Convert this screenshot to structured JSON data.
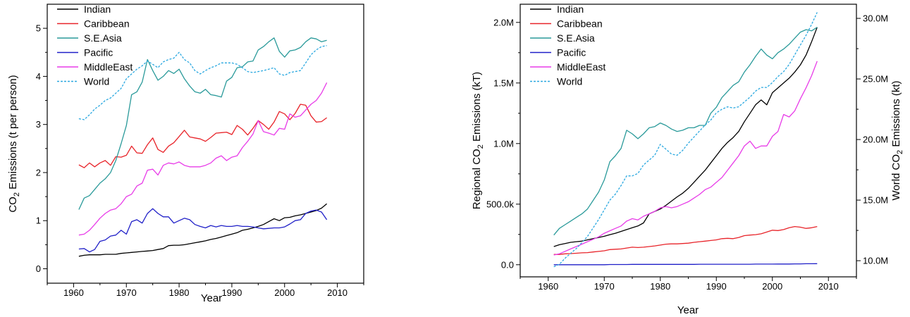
{
  "chart_data": [
    {
      "type": "line",
      "xlabel": "Year",
      "ylabel": [
        "CO",
        "2",
        " Emissions (t per person)"
      ],
      "xlim": [
        1955,
        2015
      ],
      "ylim": [
        -0.3,
        5.5
      ],
      "xticks": [
        1960,
        1970,
        1980,
        1990,
        2000,
        2010
      ],
      "yticks": [
        0,
        1,
        2,
        3,
        4,
        5
      ],
      "ytick_labels": [
        "0",
        "1",
        "2",
        "3",
        "4",
        "5"
      ],
      "legend": "top-left",
      "x": [
        1961,
        1962,
        1963,
        1964,
        1965,
        1966,
        1967,
        1968,
        1969,
        1970,
        1971,
        1972,
        1973,
        1974,
        1975,
        1976,
        1977,
        1978,
        1979,
        1980,
        1981,
        1982,
        1983,
        1984,
        1985,
        1986,
        1987,
        1988,
        1989,
        1990,
        1991,
        1992,
        1993,
        1994,
        1995,
        1996,
        1997,
        1998,
        1999,
        2000,
        2001,
        2002,
        2003,
        2004,
        2005,
        2006,
        2007,
        2008
      ],
      "series": [
        {
          "name": "Indian",
          "color": "#000000",
          "dashed": false,
          "values": [
            0.26,
            0.28,
            0.29,
            0.29,
            0.29,
            0.3,
            0.3,
            0.3,
            0.32,
            0.33,
            0.34,
            0.35,
            0.36,
            0.37,
            0.38,
            0.4,
            0.42,
            0.48,
            0.49,
            0.49,
            0.5,
            0.52,
            0.54,
            0.56,
            0.58,
            0.61,
            0.63,
            0.66,
            0.69,
            0.72,
            0.75,
            0.8,
            0.82,
            0.85,
            0.88,
            0.92,
            0.98,
            1.04,
            1.0,
            1.06,
            1.07,
            1.1,
            1.12,
            1.15,
            1.18,
            1.21,
            1.26,
            1.35
          ]
        },
        {
          "name": "Caribbean",
          "color": "#e8242a",
          "dashed": false,
          "values": [
            2.16,
            2.1,
            2.2,
            2.12,
            2.2,
            2.25,
            2.15,
            2.33,
            2.32,
            2.36,
            2.55,
            2.41,
            2.4,
            2.58,
            2.72,
            2.48,
            2.42,
            2.55,
            2.62,
            2.75,
            2.88,
            2.74,
            2.72,
            2.7,
            2.65,
            2.73,
            2.82,
            2.83,
            2.84,
            2.79,
            2.98,
            2.9,
            2.78,
            2.92,
            3.08,
            3.0,
            2.9,
            3.05,
            3.27,
            3.22,
            3.1,
            3.23,
            3.42,
            3.4,
            3.18,
            3.05,
            3.06,
            3.14
          ]
        },
        {
          "name": "S.E.Asia",
          "color": "#2a9a9a",
          "dashed": false,
          "values": [
            1.23,
            1.47,
            1.52,
            1.65,
            1.78,
            1.87,
            2.0,
            2.25,
            2.6,
            2.98,
            3.62,
            3.68,
            3.88,
            4.35,
            4.12,
            3.92,
            4.0,
            4.12,
            4.06,
            4.15,
            3.95,
            3.8,
            3.68,
            3.65,
            3.73,
            3.62,
            3.6,
            3.57,
            3.9,
            3.98,
            4.18,
            4.2,
            4.3,
            4.32,
            4.55,
            4.62,
            4.72,
            4.8,
            4.52,
            4.4,
            4.53,
            4.55,
            4.6,
            4.72,
            4.8,
            4.78,
            4.72,
            4.75
          ]
        },
        {
          "name": "Pacific",
          "color": "#2020c8",
          "dashed": false,
          "values": [
            0.41,
            0.42,
            0.35,
            0.4,
            0.57,
            0.6,
            0.68,
            0.7,
            0.8,
            0.72,
            0.98,
            1.02,
            0.95,
            1.15,
            1.25,
            1.15,
            1.08,
            1.08,
            0.95,
            1.0,
            1.05,
            1.02,
            0.92,
            0.88,
            0.85,
            0.9,
            0.87,
            0.9,
            0.88,
            0.88,
            0.9,
            0.88,
            0.88,
            0.87,
            0.85,
            0.83,
            0.84,
            0.85,
            0.85,
            0.87,
            0.93,
            1.0,
            1.02,
            1.15,
            1.2,
            1.22,
            1.18,
            1.02
          ]
        },
        {
          "name": "MiddleEast",
          "color": "#e83ce8",
          "dashed": false,
          "values": [
            0.7,
            0.72,
            0.8,
            0.92,
            1.05,
            1.15,
            1.22,
            1.25,
            1.35,
            1.5,
            1.55,
            1.72,
            1.78,
            2.05,
            2.07,
            1.95,
            2.15,
            2.2,
            2.18,
            2.22,
            2.15,
            2.12,
            2.12,
            2.12,
            2.15,
            2.2,
            2.3,
            2.35,
            2.25,
            2.32,
            2.35,
            2.52,
            2.65,
            2.8,
            3.08,
            2.85,
            2.82,
            2.78,
            2.92,
            2.9,
            3.22,
            3.15,
            3.18,
            3.3,
            3.42,
            3.5,
            3.65,
            3.87
          ]
        },
        {
          "name": "World",
          "color": "#2aa8e0",
          "dashed": true,
          "values": [
            3.12,
            3.1,
            3.2,
            3.32,
            3.4,
            3.5,
            3.55,
            3.65,
            3.75,
            3.95,
            4.05,
            4.15,
            4.22,
            4.32,
            4.25,
            4.18,
            4.3,
            4.35,
            4.38,
            4.5,
            4.35,
            4.28,
            4.12,
            4.05,
            4.12,
            4.18,
            4.22,
            4.28,
            4.28,
            4.28,
            4.25,
            4.18,
            4.1,
            4.08,
            4.1,
            4.12,
            4.15,
            4.18,
            4.05,
            4.02,
            4.08,
            4.1,
            4.12,
            4.28,
            4.45,
            4.55,
            4.62,
            4.64
          ]
        }
      ]
    },
    {
      "type": "line",
      "xlabel": "Year",
      "ylabel": [
        "Regional CO",
        "2",
        " Emissions (kT)"
      ],
      "y2label": [
        "World CO",
        "2",
        " Emissions (kt)"
      ],
      "xlim": [
        1955,
        2015
      ],
      "ylim": [
        -100000,
        2150000
      ],
      "y2lim": [
        8666667,
        31166667
      ],
      "xticks": [
        1960,
        1970,
        1980,
        1990,
        2000,
        2010
      ],
      "yticks": [
        0,
        500000,
        1000000,
        1500000,
        2000000
      ],
      "ytick_labels": [
        "0.0",
        "500.0k",
        "1.0M",
        "1.5M",
        "2.0M"
      ],
      "y2ticks": [
        10000000,
        15000000,
        20000000,
        25000000,
        30000000
      ],
      "y2tick_labels": [
        "10.0M",
        "15.0M",
        "20.0M",
        "25.0M",
        "30.0M"
      ],
      "legend": "top-left",
      "x": [
        1961,
        1962,
        1963,
        1964,
        1965,
        1966,
        1967,
        1968,
        1969,
        1970,
        1971,
        1972,
        1973,
        1974,
        1975,
        1976,
        1977,
        1978,
        1979,
        1980,
        1981,
        1982,
        1983,
        1984,
        1985,
        1986,
        1987,
        1988,
        1989,
        1990,
        1991,
        1992,
        1993,
        1994,
        1995,
        1996,
        1997,
        1998,
        1999,
        2000,
        2001,
        2002,
        2003,
        2004,
        2005,
        2006,
        2007,
        2008
      ],
      "series": [
        {
          "name": "Indian",
          "color": "#000000",
          "dashed": false,
          "axis": "left",
          "values": [
            150000,
            165000,
            175000,
            185000,
            190000,
            195000,
            205000,
            215000,
            225000,
            235000,
            248000,
            260000,
            275000,
            290000,
            305000,
            320000,
            345000,
            420000,
            440000,
            460000,
            490000,
            525000,
            560000,
            590000,
            630000,
            680000,
            730000,
            780000,
            840000,
            900000,
            960000,
            1010000,
            1050000,
            1100000,
            1180000,
            1250000,
            1320000,
            1360000,
            1320000,
            1420000,
            1460000,
            1500000,
            1540000,
            1590000,
            1650000,
            1730000,
            1840000,
            1960000
          ]
        },
        {
          "name": "Caribbean",
          "color": "#e8242a",
          "dashed": false,
          "axis": "left",
          "values": [
            85000,
            85000,
            90000,
            92000,
            95000,
            98000,
            100000,
            105000,
            110000,
            115000,
            125000,
            128000,
            130000,
            138000,
            145000,
            142000,
            145000,
            150000,
            155000,
            162000,
            170000,
            172000,
            172000,
            175000,
            178000,
            185000,
            190000,
            195000,
            200000,
            205000,
            215000,
            218000,
            215000,
            225000,
            240000,
            245000,
            248000,
            255000,
            270000,
            285000,
            282000,
            290000,
            305000,
            315000,
            310000,
            300000,
            305000,
            315000
          ]
        },
        {
          "name": "S.E.Asia",
          "color": "#2a9a9a",
          "dashed": false,
          "axis": "left",
          "values": [
            245000,
            300000,
            330000,
            360000,
            390000,
            420000,
            460000,
            530000,
            600000,
            700000,
            850000,
            900000,
            960000,
            1110000,
            1080000,
            1040000,
            1080000,
            1130000,
            1140000,
            1170000,
            1150000,
            1120000,
            1100000,
            1110000,
            1130000,
            1130000,
            1150000,
            1150000,
            1250000,
            1300000,
            1380000,
            1430000,
            1480000,
            1510000,
            1590000,
            1650000,
            1720000,
            1780000,
            1730000,
            1700000,
            1750000,
            1780000,
            1820000,
            1870000,
            1920000,
            1940000,
            1930000,
            1960000
          ]
        },
        {
          "name": "Pacific",
          "color": "#2020c8",
          "dashed": false,
          "axis": "left",
          "values": [
            0,
            0,
            0,
            0,
            0,
            0,
            0,
            0,
            0,
            0,
            2000,
            2000,
            2000,
            2000,
            3000,
            3000,
            3000,
            3000,
            3000,
            3000,
            3000,
            3000,
            3000,
            3000,
            3000,
            3000,
            4000,
            4000,
            4000,
            4000,
            4000,
            4000,
            4000,
            4000,
            4000,
            4000,
            5000,
            5000,
            5000,
            5000,
            6000,
            6000,
            6000,
            7000,
            7000,
            8000,
            8000,
            9000
          ]
        },
        {
          "name": "MiddleEast",
          "color": "#e83ce8",
          "dashed": false,
          "axis": "left",
          "values": [
            80000,
            90000,
            110000,
            130000,
            150000,
            170000,
            190000,
            210000,
            230000,
            260000,
            280000,
            300000,
            320000,
            360000,
            380000,
            370000,
            400000,
            420000,
            440000,
            470000,
            480000,
            470000,
            480000,
            500000,
            520000,
            550000,
            580000,
            620000,
            640000,
            680000,
            720000,
            780000,
            840000,
            900000,
            980000,
            1020000,
            960000,
            980000,
            980000,
            1060000,
            1100000,
            1240000,
            1220000,
            1270000,
            1370000,
            1460000,
            1560000,
            1680000
          ]
        },
        {
          "name": "World",
          "color": "#2aa8e0",
          "dashed": true,
          "axis": "right",
          "values": [
            9500000,
            9700000,
            10200000,
            10600000,
            11000000,
            11500000,
            12000000,
            12700000,
            13400000,
            14200000,
            15000000,
            15500000,
            16200000,
            17000000,
            17000000,
            17200000,
            17900000,
            18300000,
            18700000,
            19600000,
            19200000,
            18800000,
            18700000,
            19100000,
            19700000,
            20200000,
            20700000,
            21200000,
            21600000,
            22200000,
            22500000,
            22700000,
            22600000,
            22700000,
            23100000,
            23500000,
            24000000,
            24300000,
            24300000,
            24700000,
            25200000,
            25600000,
            26200000,
            27000000,
            27800000,
            28600000,
            29500000,
            30500000
          ]
        }
      ]
    }
  ]
}
